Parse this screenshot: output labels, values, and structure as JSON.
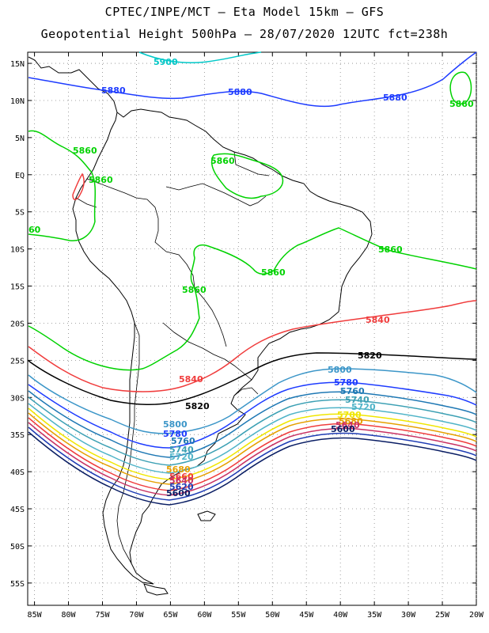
{
  "header": {
    "line1": "CPTEC/INPE/MCT –  Eta Model 15km – GFS",
    "line2": "Geopotential Height 500hPa – 28/07/2020 12UTC fct=238h"
  },
  "axes": {
    "lat_labels": [
      "15N",
      "10N",
      "5N",
      "EQ",
      "5S",
      "10S",
      "15S",
      "20S",
      "25S",
      "30S",
      "35S",
      "40S",
      "45S",
      "50S",
      "55S"
    ],
    "lat_values": [
      15,
      10,
      5,
      0,
      -5,
      -10,
      -15,
      -20,
      -25,
      -30,
      -35,
      -40,
      -45,
      -50,
      -55
    ],
    "lon_labels": [
      "85W",
      "80W",
      "75W",
      "70W",
      "65W",
      "60W",
      "55W",
      "50W",
      "45W",
      "40W",
      "35W",
      "30W",
      "25W",
      "20W"
    ],
    "lon_values": [
      -85,
      -80,
      -75,
      -70,
      -65,
      -60,
      -55,
      -50,
      -45,
      -40,
      -35,
      -30,
      -25,
      -20
    ]
  },
  "colors": {
    "c5900": "#00c8c8",
    "c5880": "#1e3cff",
    "c5860": "#00d200",
    "c5840": "#f03c3c",
    "c5820": "#000000",
    "c5800": "#3c96c8",
    "c5780": "#1e3cff",
    "c5760": "#1e78b4",
    "c5740": "#3ca0b4",
    "c5720": "#50b4c8",
    "c5700": "#f0e600",
    "c5680": "#e6a000",
    "c5660": "#f03c3c",
    "c5640": "#c83264",
    "c5620": "#1e3cb4",
    "c5600": "#0a1e64"
  },
  "contour_labels": {
    "l5900": "5900",
    "l5880a": "5880",
    "l5880b": "5880",
    "l5880c": "5880",
    "l5860a": "5860",
    "l5860b": "5860",
    "l5860c": "5860",
    "l5860d": "5860",
    "l5860e": "5860",
    "l5860f": "5860",
    "l5860g": "5860",
    "l5860h": "60",
    "l5840a": "5840",
    "l5840b": "5840",
    "l5820a": "5820",
    "l5820b": "5820",
    "l5800a": "5800",
    "l5800b": "5800",
    "l5780a": "5780",
    "l5780b": "5780",
    "l5760a": "5760",
    "l5760b": "5760",
    "l5740a": "5740",
    "l5740b": "5740",
    "l5720a": "5720",
    "l5720b": "5720",
    "l5700": "5700",
    "l5680a": "5680",
    "l5680b": "5680",
    "l5660": "5660",
    "l5640a": "5640",
    "l5640b": "5640",
    "l5620": "5620",
    "l5600a": "5600",
    "l5600b": "5600"
  }
}
